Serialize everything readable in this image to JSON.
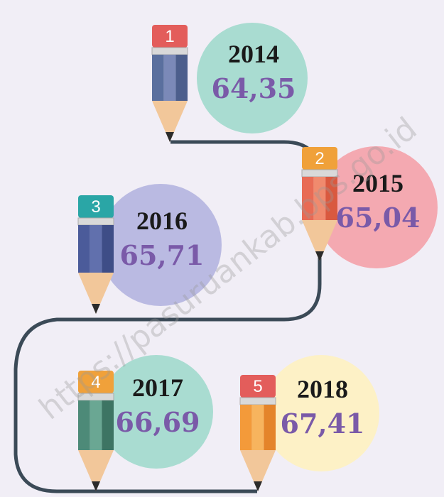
{
  "items": [
    {
      "number": "1",
      "year": "2014",
      "value": "64,35"
    },
    {
      "number": "2",
      "year": "2015",
      "value": "65,04"
    },
    {
      "number": "3",
      "year": "2016",
      "value": "65,71"
    },
    {
      "number": "4",
      "year": "2017",
      "value": "66,69"
    },
    {
      "number": "5",
      "year": "2018",
      "value": "67,41"
    }
  ],
  "watermark": "https://pasuruankab.bps.go.id"
}
